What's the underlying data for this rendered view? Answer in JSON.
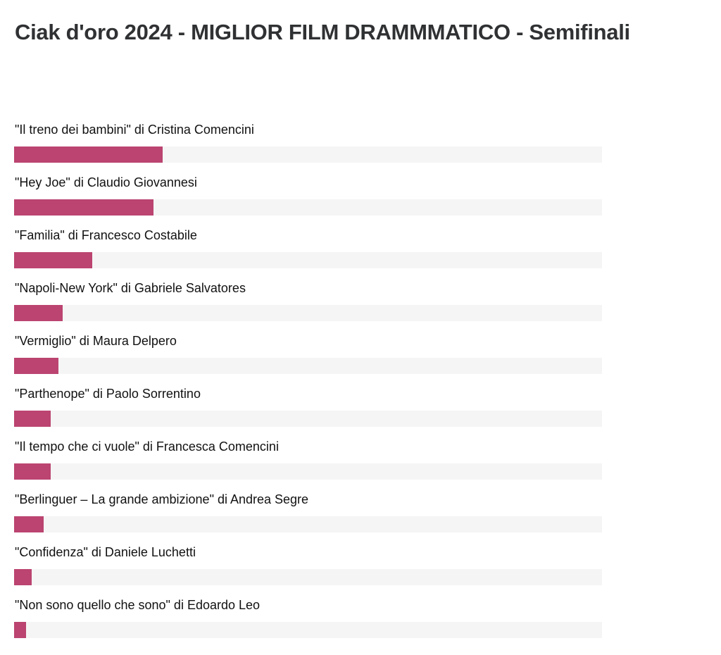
{
  "title": "Ciak d'oro 2024 - MIGLIOR FILM DRAMMMATICO - Semifinali",
  "colors": {
    "bar": "#bb4470",
    "track": "#f5f5f5"
  },
  "chart_data": {
    "type": "bar",
    "orientation": "horizontal",
    "title": "Ciak d'oro 2024 - MIGLIOR FILM DRAMMMATICO - Semifinali",
    "xlabel": "",
    "ylabel": "",
    "xlim": [
      0,
      100
    ],
    "unit": "percent",
    "grid": false,
    "legend": "none",
    "categories": [
      "\"Il treno dei bambini\" di Cristina Comencini",
      "\"Hey Joe\" di Claudio Giovannesi",
      "\"Familia\" di Francesco Costabile",
      "\"Napoli-New York\" di Gabriele Salvatores",
      "\"Vermiglio\" di Maura Delpero",
      "\"Parthenope\" di Paolo Sorrentino",
      "\"Il tempo che ci vuole\" di Francesca Comencini",
      "\"Berlinguer – La grande ambizione\" di Andrea Segre",
      "\"Confidenza\" di Daniele Luchetti",
      "\"Non sono quello che sono\" di Edoardo Leo"
    ],
    "values": [
      25.3,
      23.7,
      13.3,
      8.3,
      7.5,
      6.2,
      6.2,
      5.0,
      3.0,
      2.0
    ]
  }
}
